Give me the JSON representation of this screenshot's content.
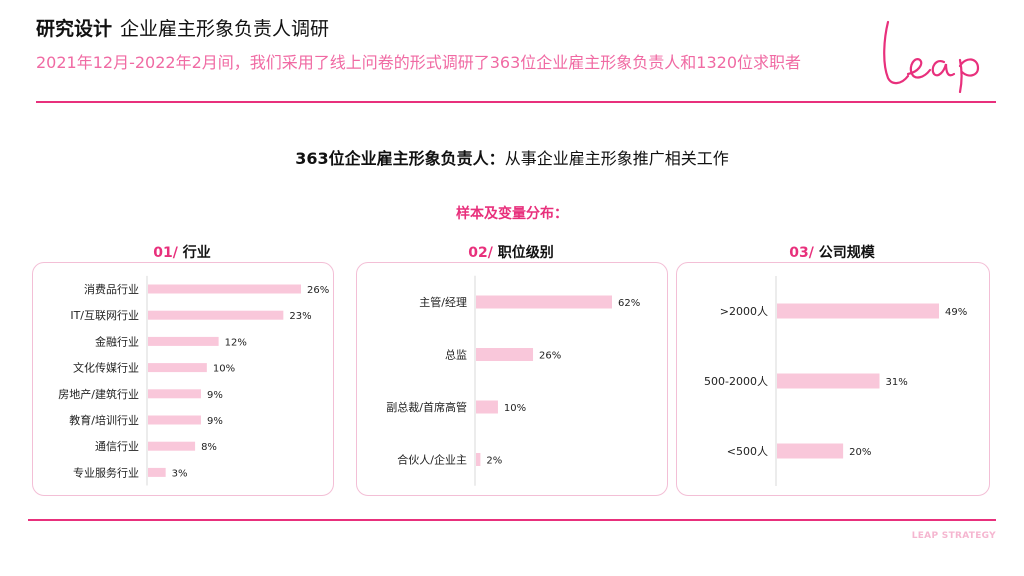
{
  "header": {
    "title_bold": "研究设计",
    "title_rest": "企业雇主形象负责人调研",
    "subtitle": "2021年12月-2022年2月间，我们采用了线上问卷的形式调研了363位企业雇主形象负责人和1320位求职者",
    "logo_text": "Leap"
  },
  "headline": {
    "bold": "363位企业雇主形象负责人：",
    "rest": "从事企业雇主形象推广相关工作"
  },
  "sample_title": "样本及变量分布：",
  "footer": "LEAP STRATEGY",
  "colors": {
    "accent": "#e8307c",
    "bar": "#f9c7da",
    "panel_border": "#f3bfd6"
  },
  "chart_data": [
    {
      "type": "bar",
      "orientation": "horizontal",
      "number": "01/",
      "title": "行业",
      "categories": [
        "消费品行业",
        "IT/互联网行业",
        "金融行业",
        "文化传媒行业",
        "房地产/建筑行业",
        "教育/培训行业",
        "通信行业",
        "专业服务行业"
      ],
      "values": [
        26,
        23,
        12,
        10,
        9,
        9,
        8,
        3
      ],
      "labels": [
        "26%",
        "23%",
        "12%",
        "10%",
        "9%",
        "9%",
        "8%",
        "3%"
      ],
      "unit": "%",
      "xlim": [
        0,
        26
      ]
    },
    {
      "type": "bar",
      "orientation": "horizontal",
      "number": "02/",
      "title": "职位级别",
      "categories": [
        "主管/经理",
        "总监",
        "副总裁/首席高管",
        "合伙人/企业主"
      ],
      "values": [
        62,
        26,
        10,
        2
      ],
      "labels": [
        "62%",
        "26%",
        "10%",
        "2%"
      ],
      "unit": "%",
      "xlim": [
        0,
        62
      ]
    },
    {
      "type": "bar",
      "orientation": "horizontal",
      "number": "03/",
      "title": "公司规模",
      "categories": [
        ">2000人",
        "500-2000人",
        "<500人"
      ],
      "values": [
        49,
        31,
        20
      ],
      "labels": [
        "49%",
        "31%",
        "20%"
      ],
      "unit": "%",
      "xlim": [
        0,
        49
      ]
    }
  ]
}
